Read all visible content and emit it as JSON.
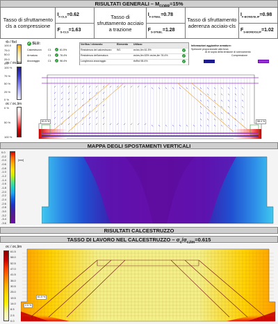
{
  "top_header": {
    "prefix": "RISULTATI GENERALI – M",
    "sub": "CORR",
    "suffix": "=15%"
  },
  "summary": {
    "col1": {
      "label": "Tasso di sfruttamento cls a compressione",
      "v1": "I",
      "v1sub": "F-CLS",
      "v1val": "=0.62",
      "v2": "F",
      "v2sub": "S-CLS",
      "v2val": "=1.63"
    },
    "col2": {
      "label": "Tasso di sfruttamento acciaio a trazione",
      "v1": "I",
      "v1sub": "F-STEEL",
      "v1val": "=0.78",
      "v2": "F",
      "v2sub": "S-STEEL",
      "v2val": "=1.28"
    },
    "col3": {
      "label": "Tasso di sfruttamento aderenza acciaio-cls",
      "v1": "I",
      "v1sub": "F-BOND/SLIP",
      "v1val": "=0.98",
      "v2": "F",
      "v2sub": "S-BOND/SLIP",
      "v2val": "=1.02"
    }
  },
  "legend_bond": {
    "title": "τb / fbd",
    "ticks": [
      "100.0",
      "75.0",
      "50.0",
      "25.0",
      "0.0"
    ]
  },
  "legend_steel": {
    "title": "σs / σs,lim",
    "ticks": [
      "100 %",
      "75 %",
      "50 %",
      "25 %",
      "0 %"
    ]
  },
  "legend_conc": {
    "title": "σc / σc,lim",
    "ticks": [
      "0 %",
      "50 %",
      "100 %"
    ]
  },
  "slu": {
    "title": "SLU:",
    "rows": [
      {
        "name": "Calcestruzzo",
        "code": "C1",
        "pct": "61.5%"
      },
      {
        "name": "Armatura",
        "code": "C1",
        "pct": "78.4%"
      },
      {
        "name": "Ancoraggio",
        "code": "C1",
        "pct": "98.4%"
      }
    ]
  },
  "verif_table": {
    "headers": [
      "Verifica / elemento",
      "Elemento",
      "Utilizzo",
      ""
    ],
    "rows": [
      [
        "Resistenza del calcestruzzo",
        "W1",
        "σc/σc,lim 61.5%",
        ""
      ],
      [
        "Resistenza dell'armatura",
        "",
        "σs/σs,lim 63%  σs/σs,lim 78.4%",
        ""
      ],
      [
        "Lunghezza ancoraggio",
        "",
        "τb/fbd 98.4%",
        ""
      ]
    ]
  },
  "armature_info": {
    "title": "Informazioni aggiuntive armature:",
    "sub": "Spessore proporzionale alla forza",
    "above": "Al di sopra della tensione di snervamento",
    "compression": "Compressione"
  },
  "top_plot_labels": {
    "left": "61.5 %",
    "right": "98.4 %"
  },
  "disp_header": "MAPPA DEGLI SPOSTAMENTI VERTICALI",
  "disp_legend": {
    "unit": "[mm]",
    "ticks": [
      "0.0",
      "-0.2",
      "-0.4",
      "-0.6",
      "-0.8",
      "-1.0",
      "-1.2",
      "-1.4",
      "-1.6",
      "-1.8",
      "-2.0",
      "-2.2",
      "-2.4",
      "-2.6",
      "-2.8",
      "-3.0",
      "-3.2",
      "-3.4",
      "-3.6"
    ]
  },
  "calc_header": "RISULTATI CALCESTRUZZO",
  "tasso_header": {
    "prefix": "TASSO DI LAVORO NEL CALCESTRUZZO – σ",
    "sub1": "c",
    "mid": "/σ",
    "sub2": "c,lim",
    "suffix": "=0.615"
  },
  "tasso_legend": {
    "title": "σc / σc,lim",
    "ticks": [
      "61.5",
      "58.0",
      "52.5",
      "47.0",
      "41.5",
      "36.0",
      "30.5",
      "25.0",
      "19.5",
      "14.0",
      "8.5",
      "2.5",
      "0.0"
    ]
  },
  "bottom_plot_labels": {
    "left": "61.5 %",
    "corner": "2.5 %"
  },
  "colors": {
    "header_bg": "#cfcfcf",
    "purple": "#6a0dad",
    "orange": "#f3a640",
    "blue_dark": "#1d1a8e"
  }
}
